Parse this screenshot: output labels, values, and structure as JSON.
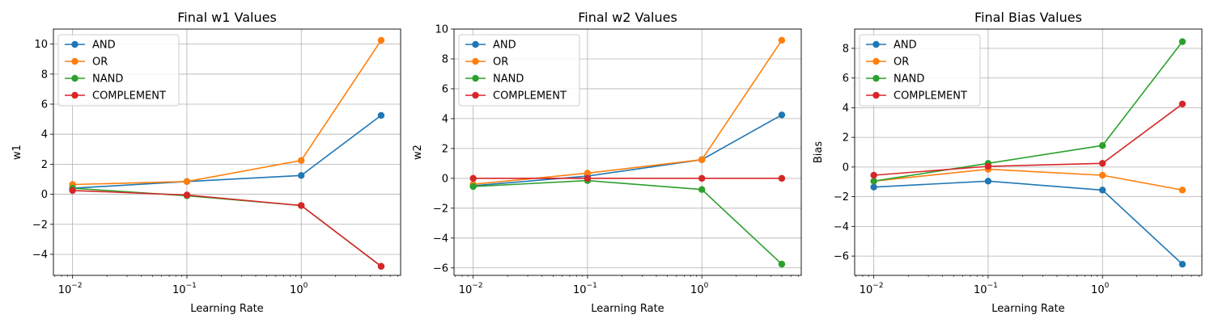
{
  "chart_data": [
    {
      "type": "line",
      "title": "Final w1 Values",
      "xlabel": "Learning Rate",
      "ylabel": "w1",
      "xscale": "log",
      "x": [
        0.01,
        0.1,
        1,
        5
      ],
      "xlim": [
        0.0068,
        7.4
      ],
      "ylim": [
        -5.4,
        11.0
      ],
      "yticks": [
        -4,
        -2,
        0,
        2,
        4,
        6,
        8,
        10
      ],
      "grid": true,
      "legend": "top-left",
      "series": [
        {
          "name": "AND",
          "color": "#1f77b4",
          "values": [
            0.4,
            0.85,
            1.25,
            5.25
          ]
        },
        {
          "name": "OR",
          "color": "#ff7f0e",
          "values": [
            0.65,
            0.85,
            2.25,
            10.25
          ]
        },
        {
          "name": "NAND",
          "color": "#2ca02c",
          "values": [
            0.4,
            -0.1,
            -0.75,
            -4.8
          ]
        },
        {
          "name": "COMPLEMENT",
          "color": "#d62728",
          "values": [
            0.25,
            -0.05,
            -0.75,
            -4.8
          ]
        }
      ]
    },
    {
      "type": "line",
      "title": "Final w2 Values",
      "xlabel": "Learning Rate",
      "ylabel": "w2",
      "xscale": "log",
      "x": [
        0.01,
        0.1,
        1,
        5
      ],
      "xlim": [
        0.0068,
        7.4
      ],
      "ylim": [
        -6.5,
        10.0
      ],
      "yticks": [
        -6,
        -4,
        -2,
        0,
        2,
        4,
        6,
        8,
        10
      ],
      "grid": true,
      "legend": "top-left",
      "series": [
        {
          "name": "AND",
          "color": "#1f77b4",
          "values": [
            -0.5,
            0.15,
            1.25,
            4.25
          ]
        },
        {
          "name": "OR",
          "color": "#ff7f0e",
          "values": [
            -0.4,
            0.35,
            1.25,
            9.25
          ]
        },
        {
          "name": "NAND",
          "color": "#2ca02c",
          "values": [
            -0.55,
            -0.15,
            -0.75,
            -5.75
          ]
        },
        {
          "name": "COMPLEMENT",
          "color": "#d62728",
          "values": [
            0.0,
            0.0,
            0.0,
            0.0
          ]
        }
      ]
    },
    {
      "type": "line",
      "title": "Final Bias Values",
      "xlabel": "Learning Rate",
      "ylabel": "Bias",
      "xscale": "log",
      "x": [
        0.01,
        0.1,
        1,
        5
      ],
      "xlim": [
        0.0068,
        7.4
      ],
      "ylim": [
        -7.3,
        9.3
      ],
      "yticks": [
        -6,
        -4,
        -2,
        0,
        2,
        4,
        6,
        8
      ],
      "grid": true,
      "legend": "top-left",
      "series": [
        {
          "name": "AND",
          "color": "#1f77b4",
          "values": [
            -1.35,
            -0.95,
            -1.55,
            -6.55
          ]
        },
        {
          "name": "OR",
          "color": "#ff7f0e",
          "values": [
            -0.95,
            -0.15,
            -0.55,
            -1.55
          ]
        },
        {
          "name": "NAND",
          "color": "#2ca02c",
          "values": [
            -0.95,
            0.25,
            1.45,
            8.45
          ]
        },
        {
          "name": "COMPLEMENT",
          "color": "#d62728",
          "values": [
            -0.55,
            0.05,
            0.25,
            4.25
          ]
        }
      ]
    }
  ]
}
